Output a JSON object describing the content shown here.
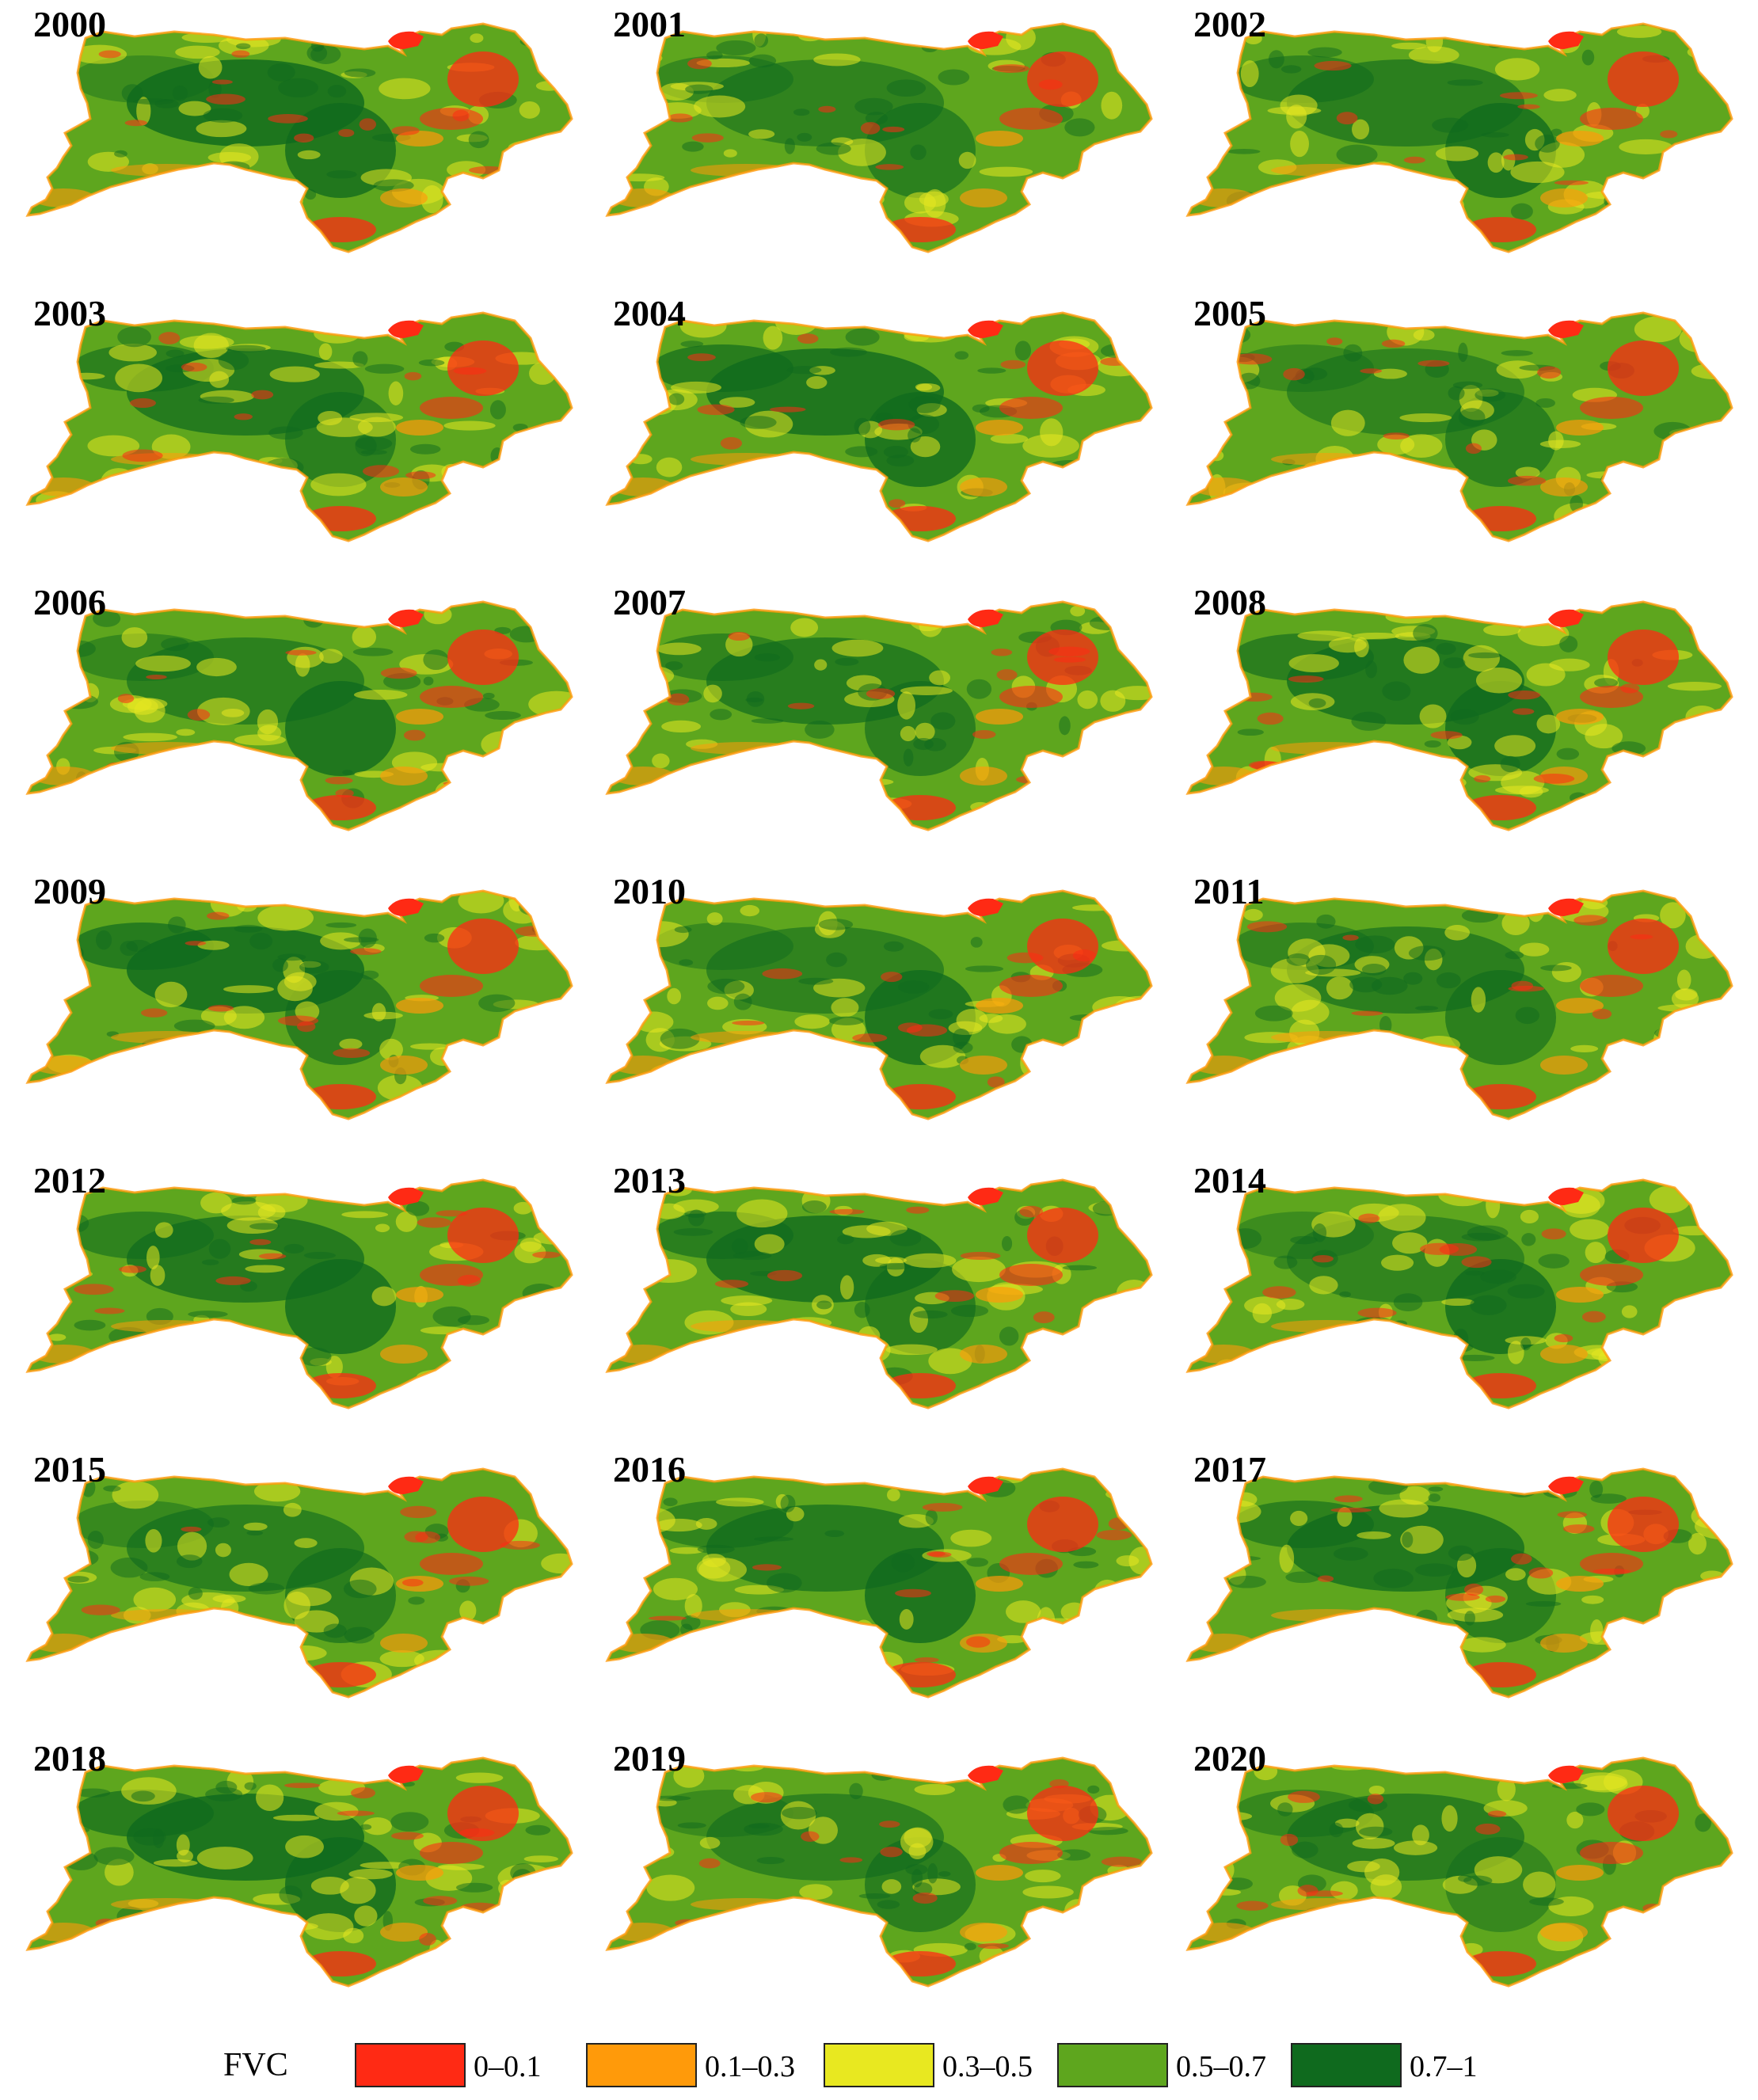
{
  "years": [
    "2000",
    "2001",
    "2002",
    "2003",
    "2004",
    "2005",
    "2006",
    "2007",
    "2008",
    "2009",
    "2010",
    "2011",
    "2012",
    "2013",
    "2014",
    "2015",
    "2016",
    "2017",
    "2018",
    "2019",
    "2020"
  ],
  "legend": {
    "title": "FVC",
    "classes": [
      {
        "label": "0–0.1",
        "color": "#ff2a14"
      },
      {
        "label": "0.1–0.3",
        "color": "#ff9a0a"
      },
      {
        "label": "0.3–0.5",
        "color": "#e8e820"
      },
      {
        "label": "0.5–0.7",
        "color": "#5ea61e"
      },
      {
        "label": "0.7–1",
        "color": "#0f6a1e"
      }
    ]
  }
}
